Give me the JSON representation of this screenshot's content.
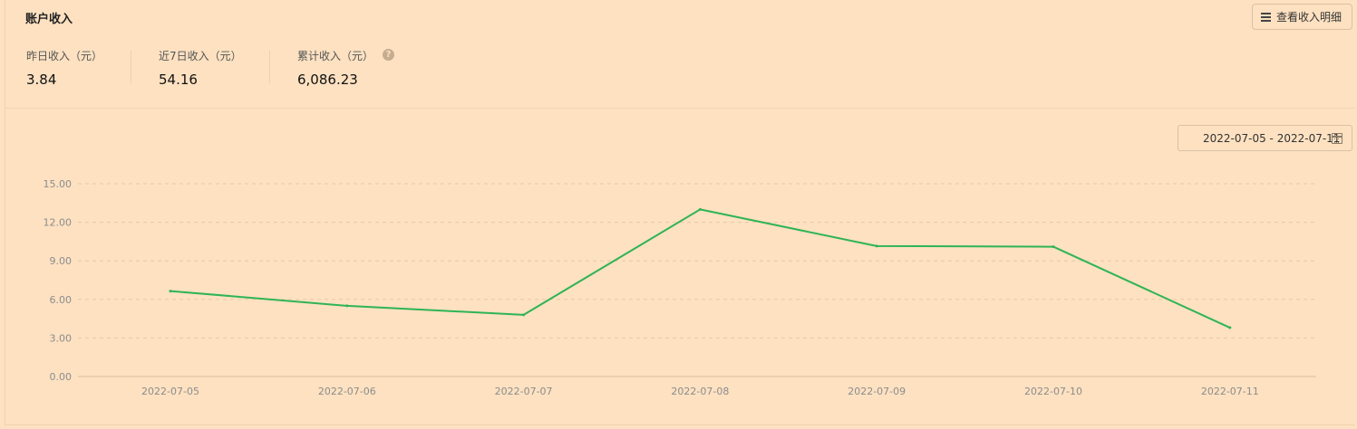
{
  "header": {
    "title": "账户收入",
    "detail_button": "查看收入明细"
  },
  "stats": [
    {
      "label": "昨日收入（元）",
      "value": "3.84"
    },
    {
      "label": "近7日收入（元）",
      "value": "54.16"
    },
    {
      "label": "累计收入（元）",
      "value": "6,086.23"
    }
  ],
  "help_icon": "?",
  "date_range": "2022-07-05 - 2022-07-11",
  "colors": {
    "line": "#2fb455",
    "grid": "#e6c9a6",
    "background": "#fde1c1"
  },
  "chart_data": {
    "type": "line",
    "title": "",
    "xlabel": "",
    "ylabel": "",
    "categories": [
      "2022-07-05",
      "2022-07-06",
      "2022-07-07",
      "2022-07-08",
      "2022-07-09",
      "2022-07-10",
      "2022-07-11"
    ],
    "series": [
      {
        "values": [
          6.65,
          5.5,
          4.8,
          13.0,
          10.15,
          10.1,
          3.8
        ]
      }
    ],
    "y_ticks": [
      "0.00",
      "3.00",
      "6.00",
      "9.00",
      "12.00",
      "15.00"
    ],
    "ylim": [
      0,
      15
    ],
    "grid": true,
    "legend": "none"
  }
}
